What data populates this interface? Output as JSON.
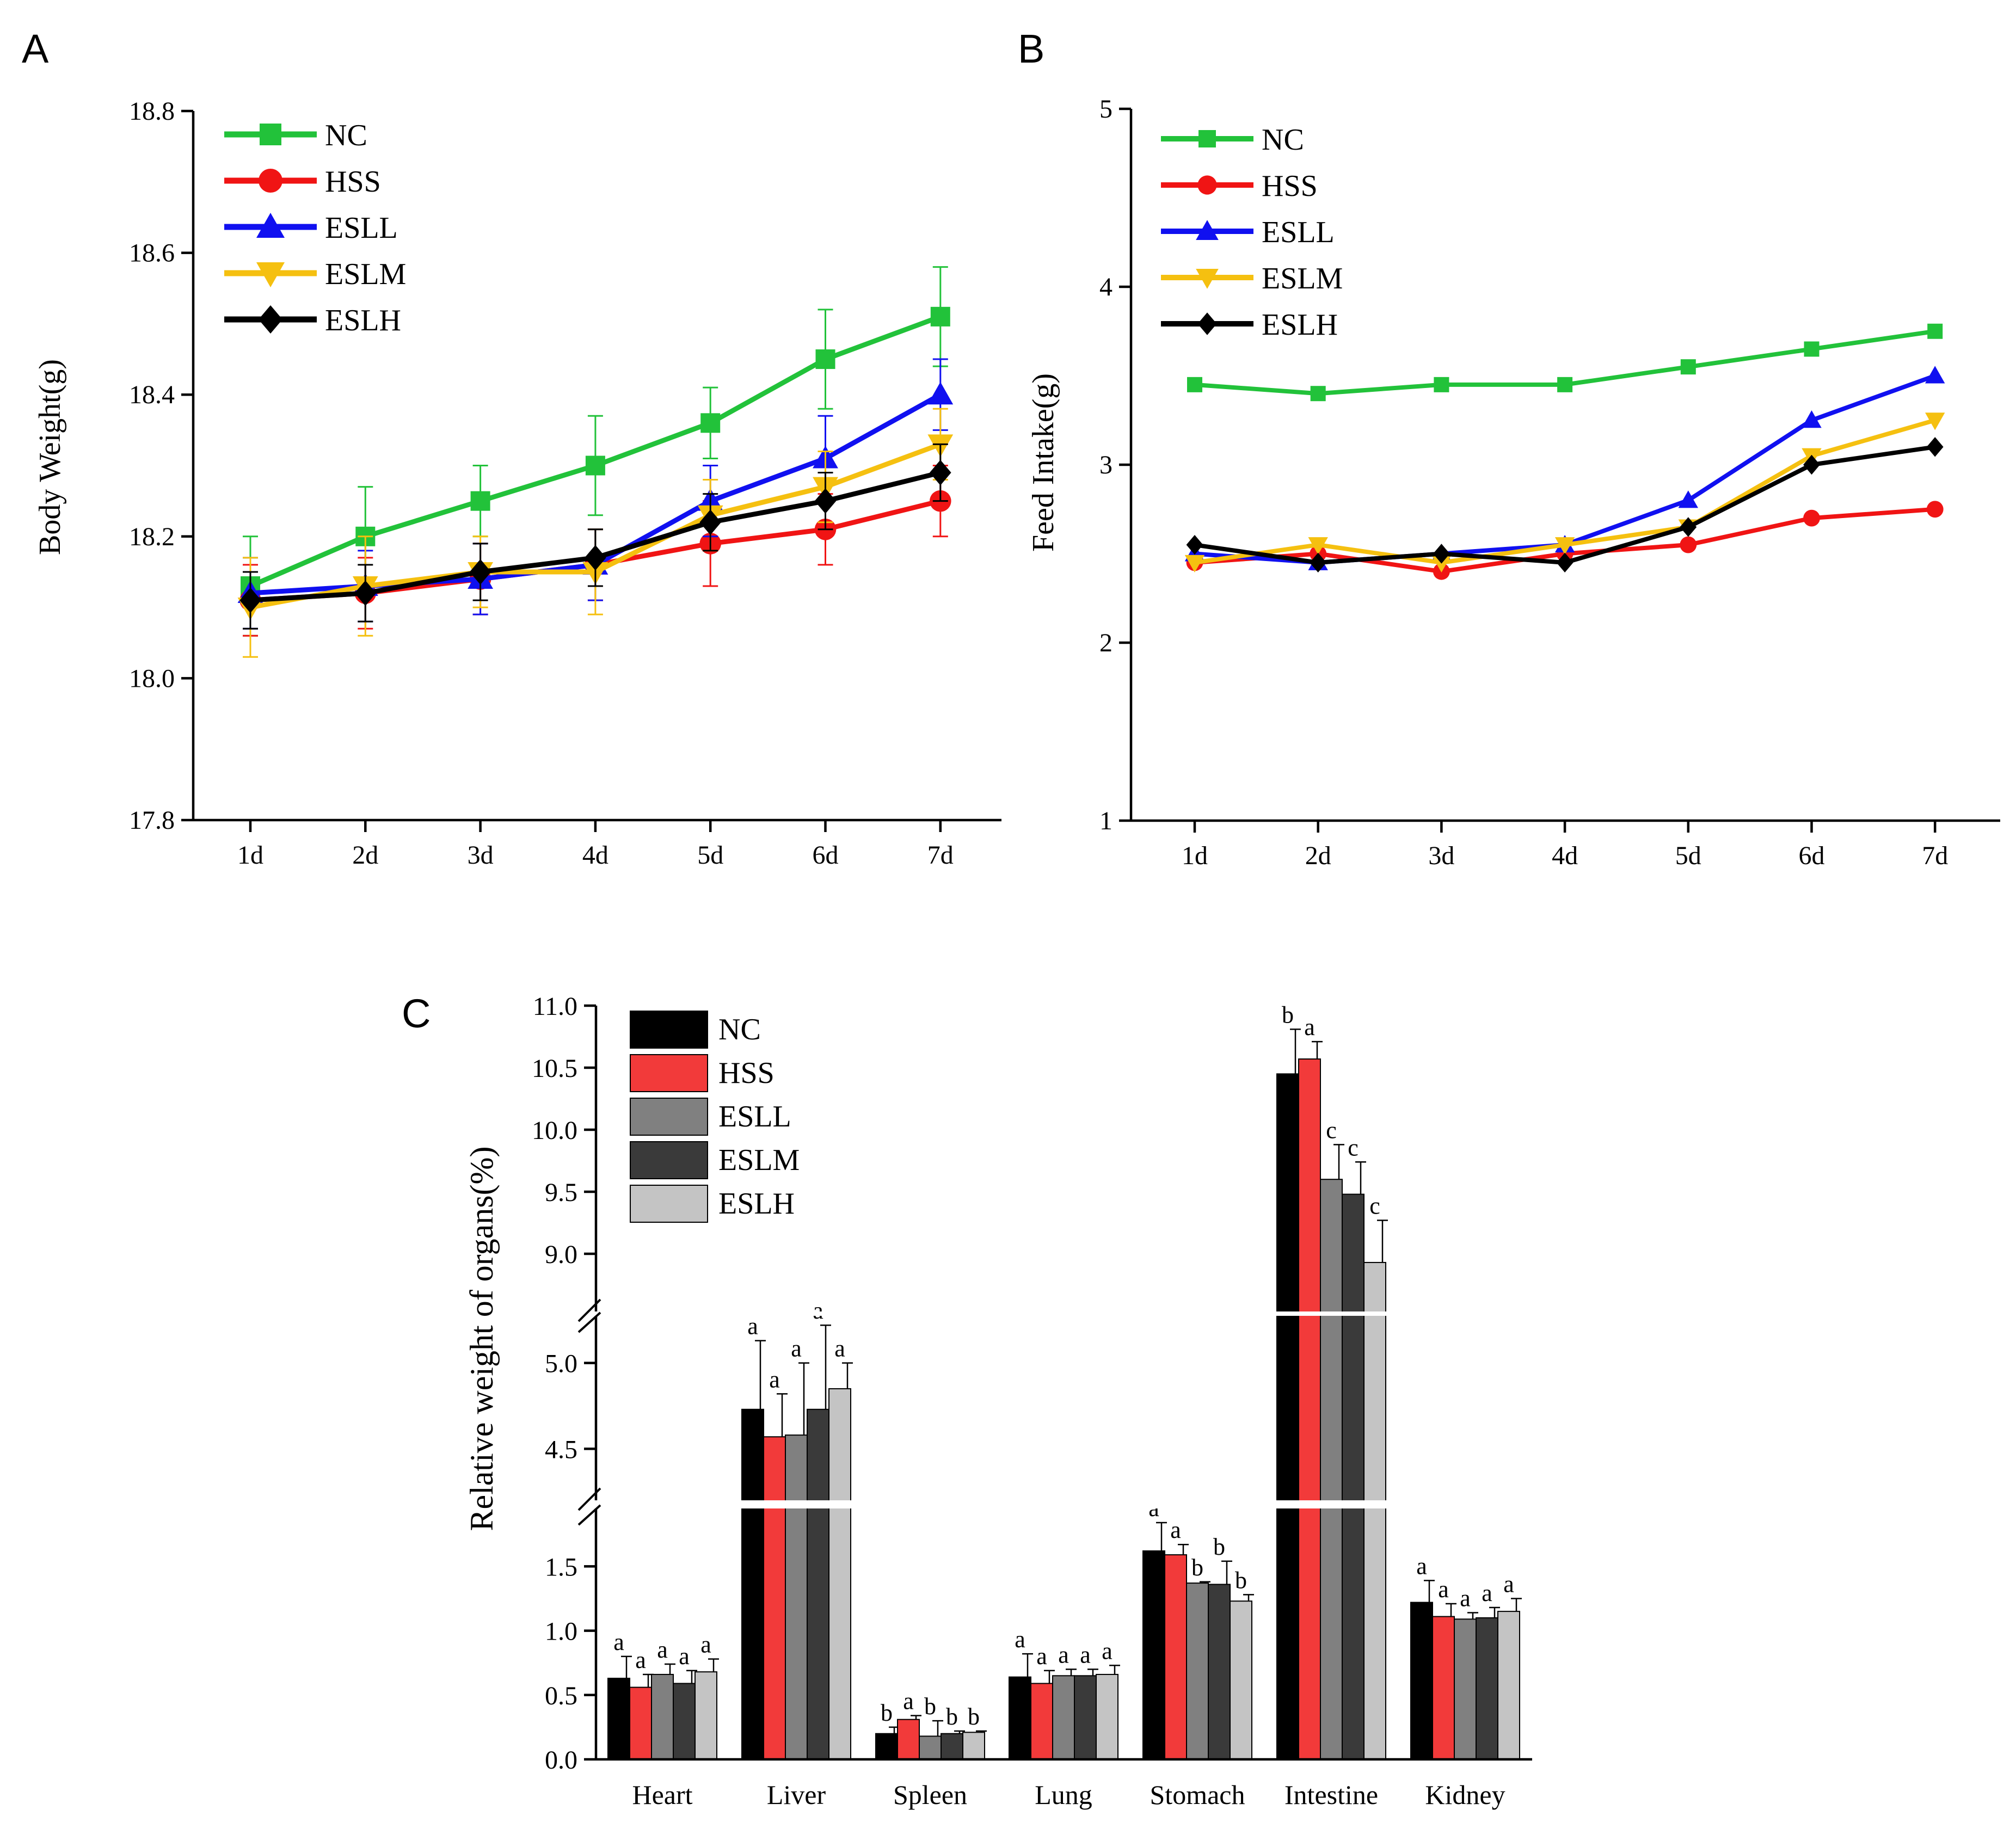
{
  "colors": {
    "NC_line": "#22c23a",
    "HSS_line": "#f01414",
    "ESLL_line": "#1010f0",
    "ESLM_line": "#f5c010",
    "ESLH_line": "#000000",
    "NC_bar": "#000000",
    "HSS_bar": "#f23a3a",
    "ESLL_bar": "#808080",
    "ESLM_bar": "#3a3a3a",
    "ESLH_bar": "#c4c4c4"
  },
  "chart_data": [
    {
      "panel": "A",
      "type": "line",
      "xlabel": "",
      "ylabel": "Body Weight(g)",
      "categories": [
        "1d",
        "2d",
        "3d",
        "4d",
        "5d",
        "6d",
        "7d"
      ],
      "ylim": [
        17.8,
        18.8
      ],
      "yticks": [
        "17.8",
        "18.0",
        "18.2",
        "18.4",
        "18.6",
        "18.8"
      ],
      "ytick_values": [
        17.8,
        18.0,
        18.2,
        18.4,
        18.6,
        18.8
      ],
      "legend_position": "top-left",
      "series": [
        {
          "name": "NC",
          "marker": "square",
          "values": [
            18.13,
            18.2,
            18.25,
            18.3,
            18.36,
            18.45,
            18.51
          ],
          "errors": [
            0.07,
            0.07,
            0.05,
            0.07,
            0.05,
            0.07,
            0.07
          ]
        },
        {
          "name": "HSS",
          "marker": "circle",
          "values": [
            18.11,
            18.12,
            18.14,
            18.16,
            18.19,
            18.21,
            18.25
          ],
          "errors": [
            0.05,
            0.05,
            0.05,
            0.05,
            0.06,
            0.05,
            0.05
          ]
        },
        {
          "name": "ESLL",
          "marker": "triangle-up",
          "values": [
            18.12,
            18.13,
            18.14,
            18.16,
            18.25,
            18.31,
            18.4
          ],
          "errors": [
            0.05,
            0.05,
            0.05,
            0.05,
            0.05,
            0.06,
            0.05
          ]
        },
        {
          "name": "ESLM",
          "marker": "triangle-down",
          "values": [
            18.1,
            18.13,
            18.15,
            18.15,
            18.23,
            18.27,
            18.33
          ],
          "errors": [
            0.07,
            0.07,
            0.05,
            0.06,
            0.05,
            0.05,
            0.05
          ]
        },
        {
          "name": "ESLH",
          "marker": "diamond",
          "values": [
            18.11,
            18.12,
            18.15,
            18.17,
            18.22,
            18.25,
            18.29
          ],
          "errors": [
            0.04,
            0.04,
            0.04,
            0.04,
            0.04,
            0.04,
            0.04
          ]
        }
      ]
    },
    {
      "panel": "B",
      "type": "line",
      "xlabel": "",
      "ylabel": "Feed Intake(g)",
      "categories": [
        "1d",
        "2d",
        "3d",
        "4d",
        "5d",
        "6d",
        "7d"
      ],
      "ylim": [
        1,
        5
      ],
      "yticks": [
        "1",
        "2",
        "3",
        "4",
        "5"
      ],
      "ytick_values": [
        1,
        2,
        3,
        4,
        5
      ],
      "legend_position": "top-left",
      "series": [
        {
          "name": "NC",
          "marker": "square",
          "values": [
            3.45,
            3.4,
            3.45,
            3.45,
            3.55,
            3.65,
            3.75
          ]
        },
        {
          "name": "HSS",
          "marker": "circle",
          "values": [
            2.45,
            2.5,
            2.4,
            2.5,
            2.55,
            2.7,
            2.75
          ]
        },
        {
          "name": "ESLL",
          "marker": "triangle-up",
          "values": [
            2.5,
            2.45,
            2.5,
            2.55,
            2.8,
            3.25,
            3.5
          ]
        },
        {
          "name": "ESLM",
          "marker": "triangle-down",
          "values": [
            2.45,
            2.55,
            2.45,
            2.55,
            2.65,
            3.05,
            3.25
          ]
        },
        {
          "name": "ESLH",
          "marker": "diamond",
          "values": [
            2.55,
            2.45,
            2.5,
            2.45,
            2.65,
            3.0,
            3.1
          ]
        }
      ]
    },
    {
      "panel": "C",
      "type": "bar",
      "xlabel": "",
      "ylabel": "Relative weight of organs(%)",
      "categories": [
        "Heart",
        "Liver",
        "Spleen",
        "Lung",
        "Stomach",
        "Intestine",
        "Kidney"
      ],
      "broken_axis_segments": [
        [
          0,
          1.95
        ],
        [
          4.2,
          5.3
        ],
        [
          8.5,
          11.0
        ]
      ],
      "yticks": [
        "0.0",
        "0.5",
        "1.0",
        "1.5",
        "4.5",
        "5.0",
        "9.0",
        "9.5",
        "10.0",
        "10.5",
        "11.0"
      ],
      "ytick_values": [
        0.0,
        0.5,
        1.0,
        1.5,
        4.5,
        5.0,
        9.0,
        9.5,
        10.0,
        10.5,
        11.0
      ],
      "legend_position": "top-left",
      "series": [
        {
          "name": "NC",
          "values": [
            0.63,
            4.73,
            0.2,
            0.64,
            1.62,
            10.45,
            1.22
          ],
          "errors": [
            0.17,
            0.4,
            0.05,
            0.18,
            0.22,
            0.36,
            0.17
          ],
          "letters": [
            "a",
            "a",
            "b",
            "a",
            "a",
            "b",
            "a"
          ]
        },
        {
          "name": "HSS",
          "values": [
            0.56,
            4.57,
            0.31,
            0.59,
            1.59,
            10.57,
            1.11
          ],
          "errors": [
            0.1,
            0.25,
            0.03,
            0.1,
            0.08,
            0.14,
            0.1
          ],
          "letters": [
            "a",
            "a",
            "a",
            "a",
            "a",
            "a",
            "a"
          ]
        },
        {
          "name": "ESLL",
          "values": [
            0.66,
            4.58,
            0.18,
            0.65,
            1.37,
            9.6,
            1.09
          ],
          "errors": [
            0.08,
            0.42,
            0.12,
            0.05,
            0.01,
            0.28,
            0.05
          ],
          "letters": [
            "a",
            "a",
            "b",
            "a",
            "b",
            "c",
            "a"
          ]
        },
        {
          "name": "ESLM",
          "values": [
            0.59,
            4.73,
            0.2,
            0.65,
            1.36,
            9.48,
            1.1
          ],
          "errors": [
            0.1,
            0.49,
            0.02,
            0.05,
            0.18,
            0.26,
            0.08
          ],
          "letters": [
            "a",
            "a",
            "b",
            "a",
            "b",
            "c",
            "a"
          ]
        },
        {
          "name": "ESLH",
          "values": [
            0.68,
            4.85,
            0.21,
            0.66,
            1.23,
            8.93,
            1.15
          ],
          "errors": [
            0.1,
            0.15,
            0.01,
            0.07,
            0.05,
            0.34,
            0.1
          ],
          "letters": [
            "a",
            "a",
            "b",
            "a",
            "b",
            "c",
            "a"
          ]
        }
      ]
    }
  ]
}
